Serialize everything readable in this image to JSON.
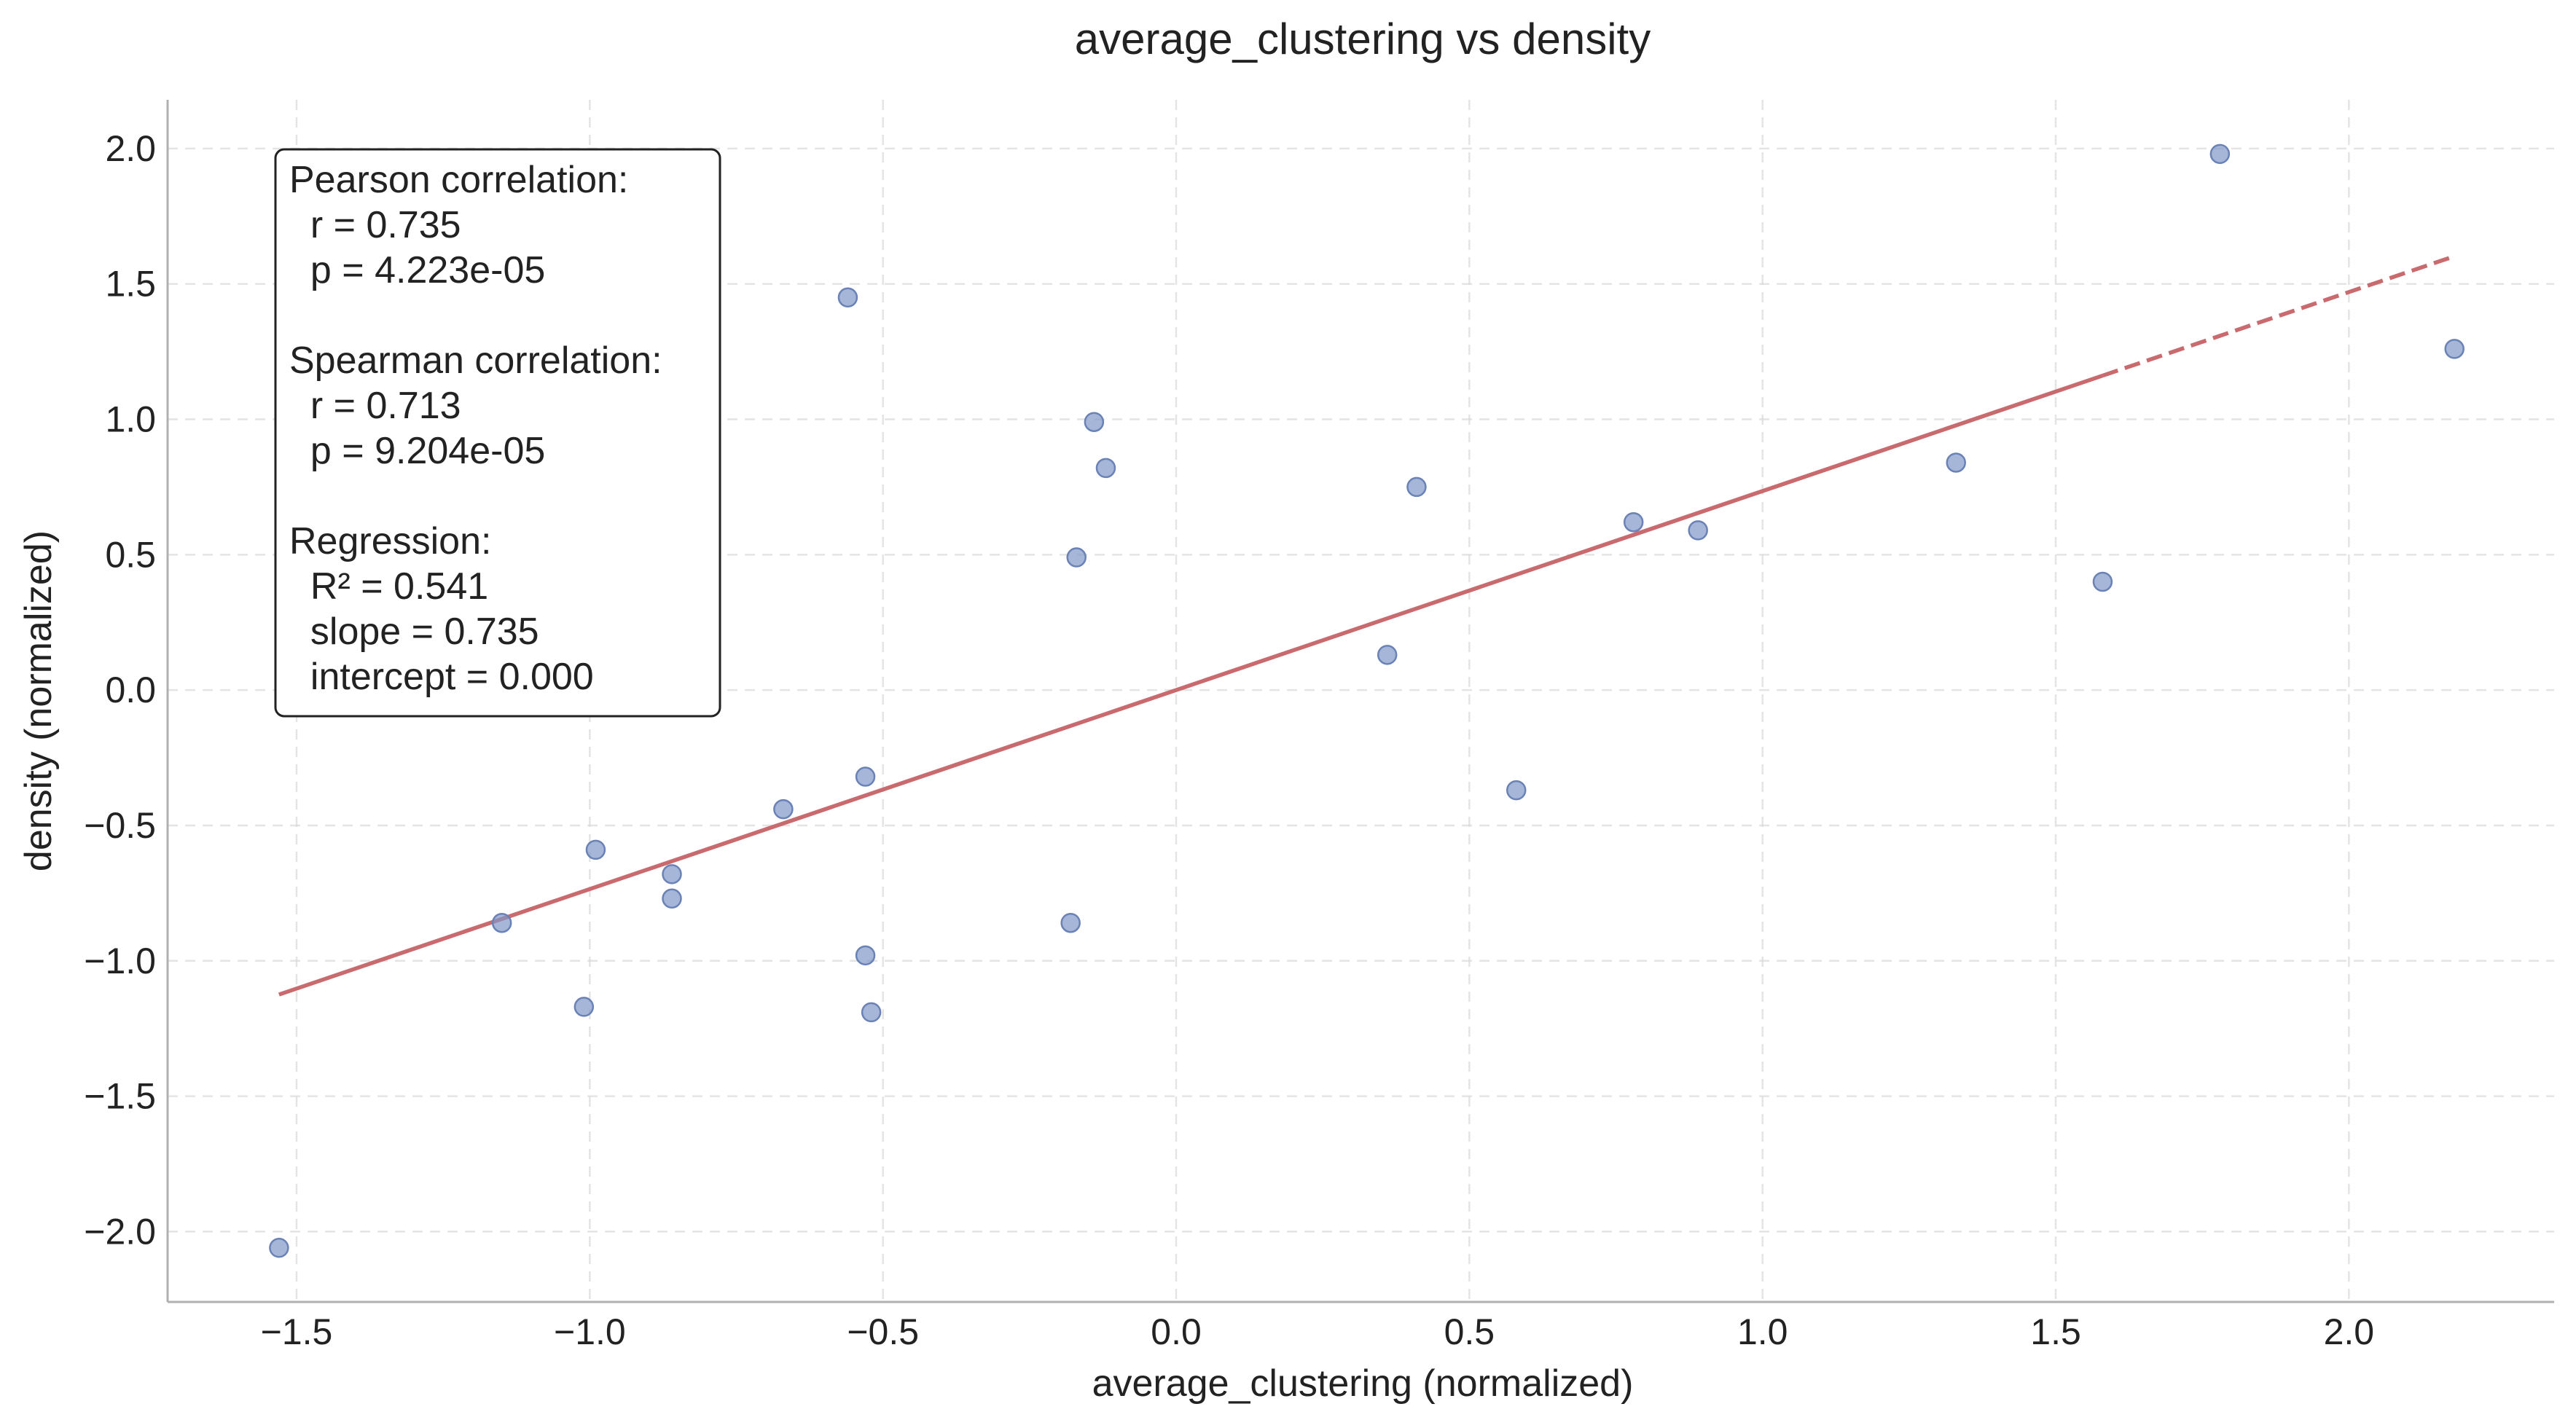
{
  "chart_data": {
    "type": "scatter",
    "title": "average_clustering vs density",
    "xlabel": "average_clustering (normalized)",
    "ylabel": "density (normalized)",
    "xlim": [
      -1.72,
      2.35
    ],
    "ylim": [
      -2.26,
      2.18
    ],
    "xticks": [
      -1.5,
      -1.0,
      -0.5,
      0.0,
      0.5,
      1.0,
      1.5,
      2.0
    ],
    "xtick_labels": [
      "−1.5",
      "−1.0",
      "−0.5",
      "0.0",
      "0.5",
      "1.0",
      "1.5",
      "2.0"
    ],
    "yticks": [
      2.0,
      1.5,
      1.0,
      0.5,
      0.0,
      -0.5,
      -1.0,
      -1.5,
      -2.0
    ],
    "ytick_labels": [
      "2.0",
      "1.5",
      "1.0",
      "0.5",
      "0.0",
      "−0.5",
      "−1.0",
      "−1.5",
      "−2.0"
    ],
    "grid": true,
    "points": [
      {
        "x": -1.53,
        "y": -2.06
      },
      {
        "x": -1.15,
        "y": -0.86
      },
      {
        "x": -1.01,
        "y": -1.17
      },
      {
        "x": -0.99,
        "y": -0.59
      },
      {
        "x": -0.86,
        "y": -0.68
      },
      {
        "x": -0.86,
        "y": -0.77
      },
      {
        "x": -0.67,
        "y": -0.44
      },
      {
        "x": -0.56,
        "y": 1.45
      },
      {
        "x": -0.53,
        "y": -0.32
      },
      {
        "x": -0.53,
        "y": -0.98
      },
      {
        "x": -0.52,
        "y": -1.19
      },
      {
        "x": -0.18,
        "y": -0.86
      },
      {
        "x": -0.17,
        "y": 0.49
      },
      {
        "x": -0.14,
        "y": 0.99
      },
      {
        "x": -0.12,
        "y": 0.82
      },
      {
        "x": 0.36,
        "y": 0.13
      },
      {
        "x": 0.41,
        "y": 0.75
      },
      {
        "x": 0.58,
        "y": -0.37
      },
      {
        "x": 0.78,
        "y": 0.62
      },
      {
        "x": 0.89,
        "y": 0.59
      },
      {
        "x": 1.33,
        "y": 0.84
      },
      {
        "x": 1.58,
        "y": 0.4
      },
      {
        "x": 1.78,
        "y": 1.98
      },
      {
        "x": 2.18,
        "y": 1.26
      }
    ],
    "regression": {
      "slope": 0.735,
      "intercept": 0.0,
      "x_start": -1.53,
      "x_solid_end": 1.58,
      "x_end": 2.18,
      "color": "#c96a6e"
    },
    "point_color": "#7f97c8",
    "stats_box": {
      "location": "top-left",
      "lines": [
        "Pearson correlation:",
        "  r = 0.735",
        "  p = 4.223e-05",
        "",
        "Spearman correlation:",
        "  r = 0.713",
        "  p = 9.204e-05",
        "",
        "Regression:",
        "  R² = 0.541",
        "  slope = 0.735",
        "  intercept = 0.000"
      ]
    }
  }
}
